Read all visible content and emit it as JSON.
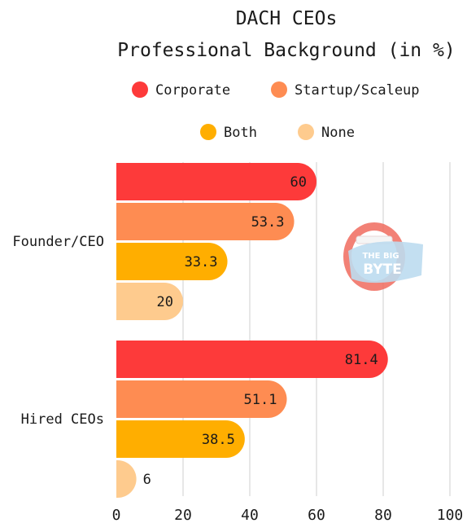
{
  "chart_data": {
    "type": "bar",
    "orientation": "horizontal",
    "title": [
      "DACH CEOs",
      "Professional Background (in %)"
    ],
    "categories": [
      "Founder/CEO",
      "Hired CEOs"
    ],
    "series": [
      {
        "name": "Corporate",
        "color": "#fd3a3a",
        "values": [
          60,
          81.4
        ],
        "labels": [
          "60",
          "81.4"
        ]
      },
      {
        "name": "Startup/Scaleup",
        "color": "#fe8c52",
        "values": [
          53.3,
          51.1
        ],
        "labels": [
          "53.3",
          "51.1"
        ]
      },
      {
        "name": "Both",
        "color": "#ffae00",
        "values": [
          33.3,
          38.5
        ],
        "labels": [
          "33.3",
          "38.5"
        ]
      },
      {
        "name": "None",
        "color": "#fecb8e",
        "values": [
          20,
          6
        ],
        "labels": [
          "20",
          "6"
        ]
      }
    ],
    "xlim": [
      0,
      100
    ],
    "xticks": [
      0,
      20,
      40,
      60,
      80,
      100
    ],
    "grid": "vertical",
    "legend": "top"
  },
  "logo": {
    "name": "mouth-logo-icon",
    "text_top": "THE BIG",
    "text_bottom": "BYTE"
  }
}
